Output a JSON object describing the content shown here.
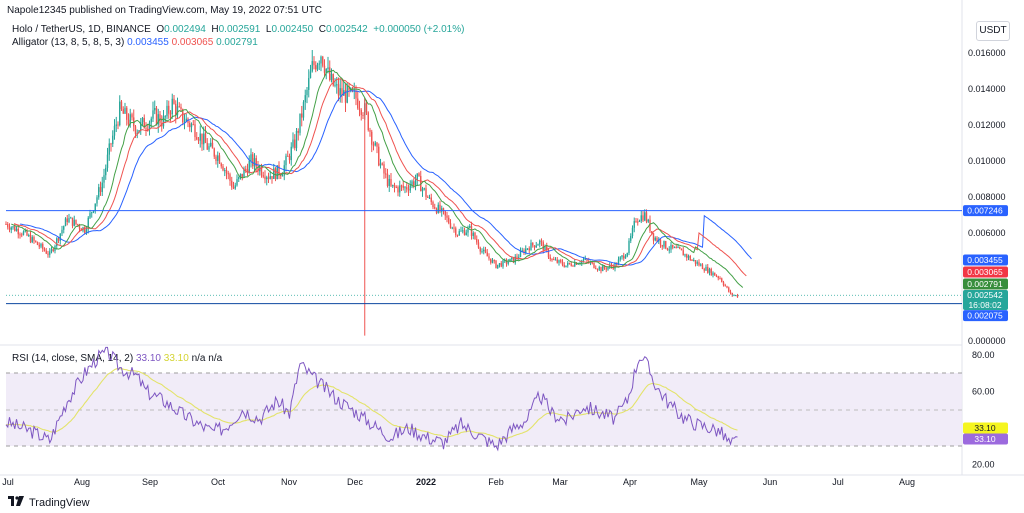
{
  "header": {
    "published": "Napole12345 published on TradingView.com, May 19, 2022 07:51 UTC"
  },
  "legend": {
    "symbol": "Holo / TetherUS, 1D, BINANCE",
    "o_label": "O",
    "o_value": "0.002494",
    "h_label": "H",
    "h_value": "0.002591",
    "l_label": "L",
    "l_value": "0.002450",
    "c_label": "C",
    "c_value": "0.002542",
    "change": "+0.000050 (+2.01%)",
    "alligator_label": "Alligator (13, 8, 5, 8, 5, 3)",
    "alligator_jaw": "0.003455",
    "alligator_teeth": "0.003065",
    "alligator_lips": "0.002791",
    "rsi_label": "RSI (14, close, SMA, 14, 2)",
    "rsi_value": "33.10",
    "rsi_sma_value": "33.10",
    "rsi_na1": "n/a",
    "rsi_na2": "n/a"
  },
  "currency_button": "USDT",
  "price_badges": {
    "horizontal_line": "0.007246",
    "jaw": "0.003455",
    "teeth": "0.003065",
    "lips": "0.002791",
    "last": "0.002542",
    "countdown": "16:08:02",
    "lower_line": "0.002075"
  },
  "rsi_badges": {
    "sma": "33.10",
    "rsi": "33.10"
  },
  "footer": {
    "brand": "TradingView"
  },
  "colors": {
    "up": "#26a69a",
    "down": "#ef5350",
    "jaw": "#2962ff",
    "teeth": "#ef5350",
    "lips": "#43a047",
    "hline": "#2962ff",
    "rsi": "#7e57c2",
    "rsi_sma": "#e3e36a",
    "rsi_band": "#ede7f6"
  },
  "chart_data": [
    {
      "type": "candlestick",
      "title": "Holo / TetherUS, 1D, BINANCE",
      "x_ticks": [
        "Jul",
        "Aug",
        "Sep",
        "Oct",
        "Nov",
        "Dec",
        "2022",
        "Feb",
        "Mar",
        "Apr",
        "May",
        "Jun",
        "Jul",
        "Aug"
      ],
      "y_ticks": [
        "0.016000",
        "0.014000",
        "0.012000",
        "0.010000",
        "0.008000",
        "0.006000",
        "0.000000"
      ],
      "ylim": [
        0,
        0.0175
      ],
      "series": [
        {
          "name": "Holo / TetherUS",
          "anchors": [
            [
              0,
              0.0065
            ],
            [
              10,
              0.006
            ],
            [
              25,
              0.0048
            ],
            [
              35,
              0.0068
            ],
            [
              45,
              0.0062
            ],
            [
              55,
              0.0088
            ],
            [
              60,
              0.011
            ],
            [
              65,
              0.0128
            ],
            [
              75,
              0.0118
            ],
            [
              85,
              0.0125
            ],
            [
              90,
              0.0122
            ],
            [
              95,
              0.0132
            ],
            [
              100,
              0.0125
            ],
            [
              108,
              0.0118
            ],
            [
              115,
              0.0108
            ],
            [
              122,
              0.0102
            ],
            [
              130,
              0.0085
            ],
            [
              140,
              0.01
            ],
            [
              150,
              0.0092
            ],
            [
              158,
              0.0095
            ],
            [
              165,
              0.011
            ],
            [
              170,
              0.013
            ],
            [
              175,
              0.0152
            ],
            [
              180,
              0.016
            ],
            [
              185,
              0.0145
            ],
            [
              190,
              0.0138
            ],
            [
              200,
              0.0135
            ],
            [
              205,
              0.0128
            ],
            [
              210,
              0.011
            ],
            [
              215,
              0.0095
            ],
            [
              220,
              0.0085
            ],
            [
              228,
              0.0085
            ],
            [
              235,
              0.009
            ],
            [
              242,
              0.0078
            ],
            [
              250,
              0.007
            ],
            [
              258,
              0.006
            ],
            [
              265,
              0.0062
            ],
            [
              272,
              0.005
            ],
            [
              280,
              0.0042
            ],
            [
              290,
              0.0045
            ],
            [
              298,
              0.0052
            ],
            [
              305,
              0.0055
            ],
            [
              312,
              0.0045
            ],
            [
              320,
              0.0042
            ],
            [
              330,
              0.0045
            ],
            [
              340,
              0.004
            ],
            [
              348,
              0.0042
            ],
            [
              355,
              0.005
            ],
            [
              360,
              0.0068
            ],
            [
              365,
              0.007
            ],
            [
              370,
              0.0058
            ],
            [
              378,
              0.0052
            ],
            [
              385,
              0.005
            ],
            [
              392,
              0.0045
            ],
            [
              400,
              0.004
            ],
            [
              408,
              0.0035
            ],
            [
              414,
              0.0026
            ],
            [
              418,
              0.0025
            ]
          ]
        },
        {
          "name": "Alligator jaw",
          "value": 0.003455
        },
        {
          "name": "Alligator teeth",
          "value": 0.003065
        },
        {
          "name": "Alligator lips",
          "value": 0.002791
        }
      ],
      "horizontal_lines": [
        0.007246,
        0.002075
      ]
    },
    {
      "type": "line",
      "title": "RSI (14, close, SMA, 14, 2)",
      "y_ticks": [
        "80.00",
        "60.00",
        "20.00"
      ],
      "bands": [
        70,
        50,
        30
      ],
      "ylim": [
        18,
        82
      ],
      "series": [
        {
          "name": "RSI",
          "anchors": [
            [
              0,
              43
            ],
            [
              15,
              38
            ],
            [
              25,
              33
            ],
            [
              35,
              55
            ],
            [
              45,
              70
            ],
            [
              52,
              78
            ],
            [
              58,
              82
            ],
            [
              65,
              73
            ],
            [
              75,
              68
            ],
            [
              80,
              60
            ],
            [
              90,
              55
            ],
            [
              100,
              48
            ],
            [
              110,
              42
            ],
            [
              118,
              38
            ],
            [
              125,
              40
            ],
            [
              135,
              50
            ],
            [
              145,
              45
            ],
            [
              155,
              55
            ],
            [
              162,
              48
            ],
            [
              168,
              75
            ],
            [
              175,
              68
            ],
            [
              182,
              62
            ],
            [
              190,
              55
            ],
            [
              198,
              50
            ],
            [
              205,
              45
            ],
            [
              212,
              40
            ],
            [
              220,
              35
            ],
            [
              230,
              40
            ],
            [
              240,
              35
            ],
            [
              250,
              32
            ],
            [
              260,
              42
            ],
            [
              270,
              36
            ],
            [
              280,
              30
            ],
            [
              290,
              40
            ],
            [
              298,
              45
            ],
            [
              305,
              58
            ],
            [
              312,
              48
            ],
            [
              320,
              44
            ],
            [
              330,
              52
            ],
            [
              340,
              48
            ],
            [
              348,
              45
            ],
            [
              355,
              55
            ],
            [
              362,
              80
            ],
            [
              366,
              75
            ],
            [
              372,
              62
            ],
            [
              380,
              52
            ],
            [
              388,
              45
            ],
            [
              395,
              42
            ],
            [
              402,
              40
            ],
            [
              408,
              38
            ],
            [
              414,
              31
            ],
            [
              418,
              33
            ]
          ]
        },
        {
          "name": "RSI SMA",
          "value": 33.1
        }
      ]
    }
  ]
}
